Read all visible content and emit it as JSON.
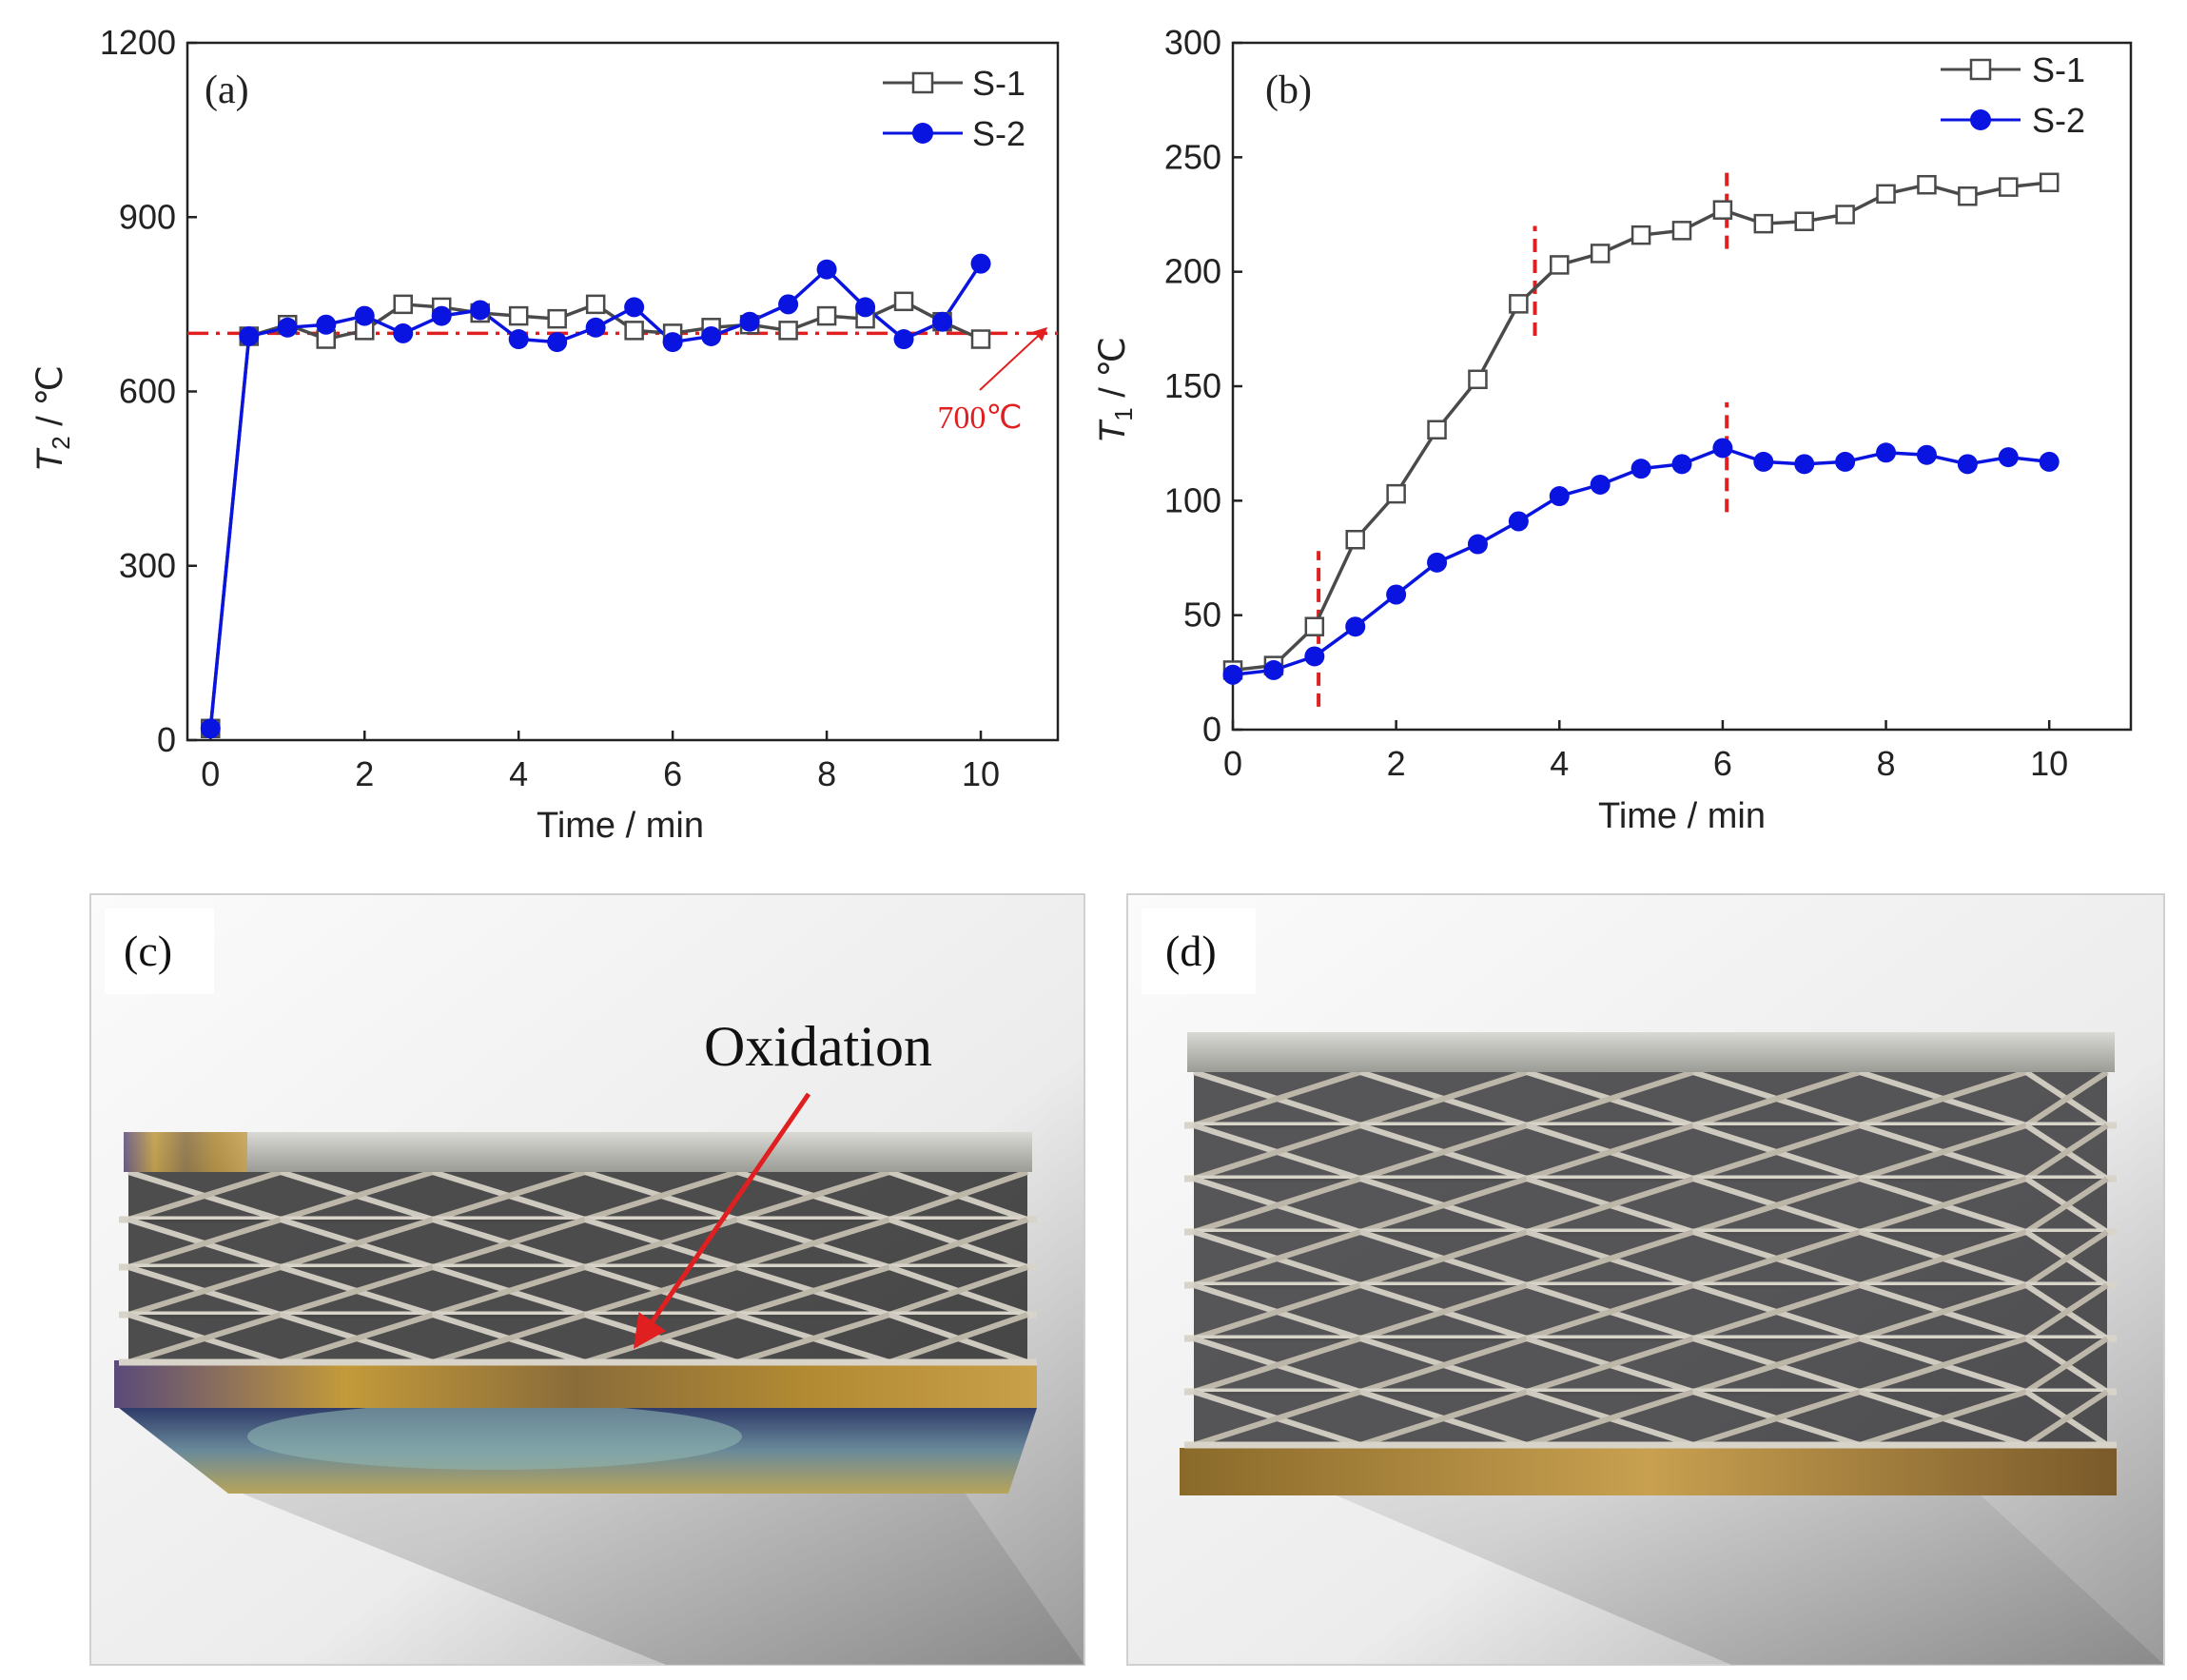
{
  "chart_data": [
    {
      "type": "line",
      "panel_label": "(a)",
      "xlabel": "Time / min",
      "ylabel_main": "T",
      "ylabel_sub": "2",
      "ylabel_unit": " / ℃",
      "xlim": [
        -0.3,
        11.0
      ],
      "ylim": [
        0,
        1200
      ],
      "xticks": [
        0,
        2,
        4,
        6,
        8,
        10
      ],
      "yticks": [
        0,
        300,
        600,
        900,
        1200
      ],
      "x": [
        0,
        0.5,
        1,
        1.5,
        2,
        2.5,
        3,
        3.5,
        4,
        4.5,
        5,
        5.5,
        6,
        6.5,
        7,
        7.5,
        8,
        8.5,
        9,
        9.5,
        10
      ],
      "series": [
        {
          "name": "S-1",
          "color": "#4a4a4a",
          "marker": "square-open",
          "values": [
            20,
            695,
            715,
            690,
            705,
            750,
            745,
            735,
            730,
            725,
            750,
            705,
            700,
            710,
            715,
            705,
            730,
            725,
            755,
            720,
            690
          ]
        },
        {
          "name": "S-2",
          "color": "#0a14e0",
          "marker": "circle-filled",
          "values": [
            20,
            695,
            710,
            715,
            730,
            700,
            730,
            740,
            690,
            685,
            710,
            745,
            685,
            695,
            720,
            750,
            810,
            745,
            690,
            720,
            820
          ]
        }
      ],
      "reference_line": {
        "y": 700,
        "label": "700℃",
        "color": "#e02020"
      },
      "legend": "top-right"
    },
    {
      "type": "line",
      "panel_label": "(b)",
      "xlabel": "Time / min",
      "ylabel_main": "T",
      "ylabel_sub": "1",
      "ylabel_unit": " / ℃",
      "xlim": [
        0,
        11.0
      ],
      "ylim": [
        0,
        300
      ],
      "xticks": [
        0,
        2,
        4,
        6,
        8,
        10
      ],
      "yticks": [
        0,
        50,
        100,
        150,
        200,
        250,
        300
      ],
      "x": [
        0,
        0.5,
        1,
        1.5,
        2,
        2.5,
        3,
        3.5,
        4,
        4.5,
        5,
        5.5,
        6,
        6.5,
        7,
        7.5,
        8,
        8.5,
        9,
        9.5,
        10
      ],
      "series": [
        {
          "name": "S-1",
          "color": "#4a4a4a",
          "marker": "square-open",
          "values": [
            26,
            28,
            45,
            83,
            103,
            131,
            153,
            186,
            203,
            208,
            216,
            218,
            227,
            221,
            222,
            225,
            234,
            238,
            233,
            237,
            239
          ]
        },
        {
          "name": "S-2",
          "color": "#0a14e0",
          "marker": "circle-filled",
          "values": [
            24,
            26,
            32,
            45,
            59,
            73,
            81,
            91,
            102,
            107,
            114,
            116,
            123,
            117,
            116,
            117,
            121,
            120,
            116,
            119,
            117
          ]
        }
      ],
      "dashed_markers": [
        {
          "x": 1.05,
          "y_range": [
            10,
            78
          ],
          "color": "#e02020"
        },
        {
          "x": 3.7,
          "y_range": [
            172,
            220
          ],
          "color": "#e02020"
        },
        {
          "x": 6.05,
          "y_range": [
            210,
            245
          ],
          "color": "#e02020"
        },
        {
          "x": 6.05,
          "y_range": [
            95,
            143
          ],
          "color": "#e02020"
        }
      ],
      "legend": "top-right"
    }
  ],
  "photos": [
    {
      "label": "(c)",
      "annotation": "Oxidation"
    },
    {
      "label": "(d)"
    }
  ]
}
